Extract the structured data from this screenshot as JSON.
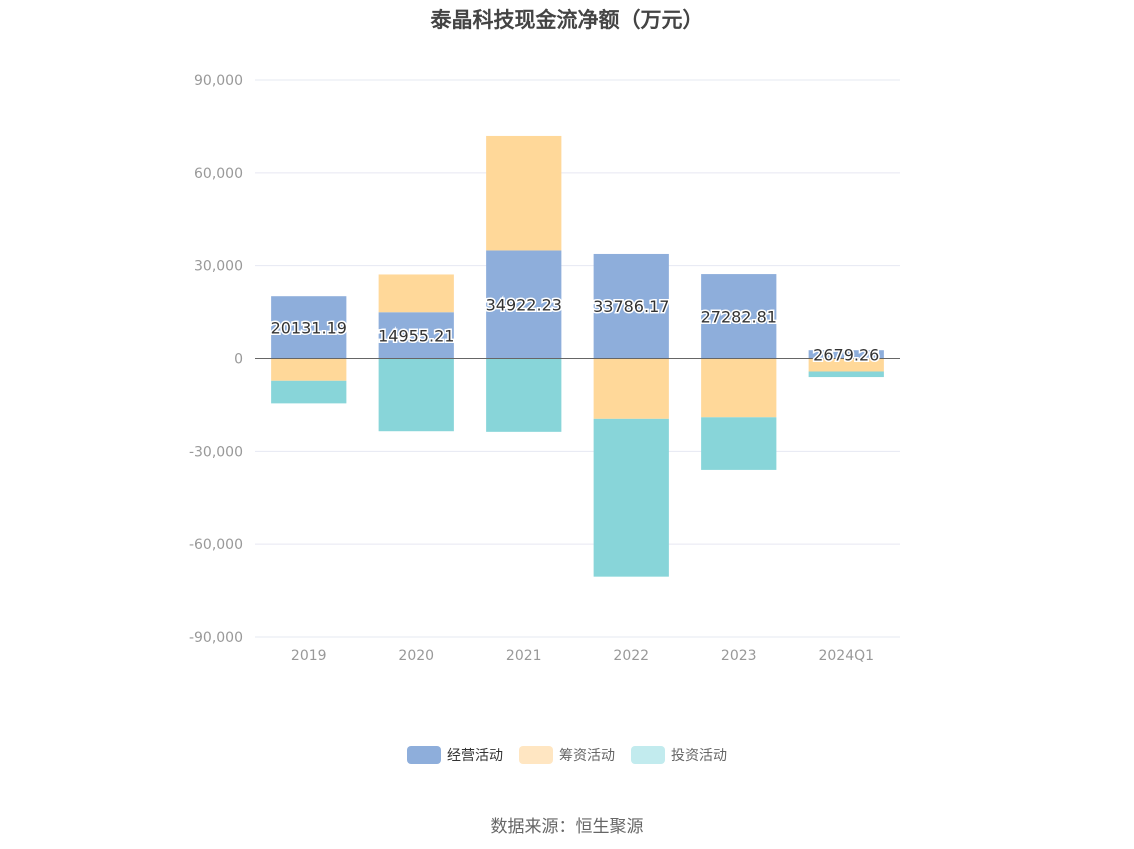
{
  "chart_data": {
    "type": "bar",
    "stacked": true,
    "title": "泰晶科技现金流净额（万元）",
    "categories": [
      "2019",
      "2020",
      "2021",
      "2022",
      "2023",
      "2024Q1"
    ],
    "series": [
      {
        "name": "经营活动",
        "color": "#8eaedb",
        "values": [
          20131.19,
          14955.21,
          34922.23,
          33786.17,
          27282.81,
          2679.26
        ]
      },
      {
        "name": "筹资活动",
        "color": "#ffd899",
        "values": [
          -7200,
          12200,
          37000,
          -19500,
          -19000,
          -4200
        ]
      },
      {
        "name": "投资活动",
        "color": "#88d5d9",
        "values": [
          -7300,
          -23500,
          -23700,
          -51000,
          -17000,
          -1800
        ]
      }
    ],
    "data_labels": [
      "20131.19",
      "14955.21",
      "34922.23",
      "33786.17",
      "27282.81",
      "2679.26"
    ],
    "yticks": [
      "90,000",
      "60,000",
      "30,000",
      "0",
      "-30,000",
      "-60,000",
      "-90,000"
    ],
    "ylim": [
      -90000,
      90000
    ],
    "legend_position": "bottom",
    "grid": true
  },
  "legend_colors": [
    "#8eaedb",
    "#ffe6c2",
    "#c2ebee"
  ],
  "source_text": "数据来源：恒生聚源"
}
